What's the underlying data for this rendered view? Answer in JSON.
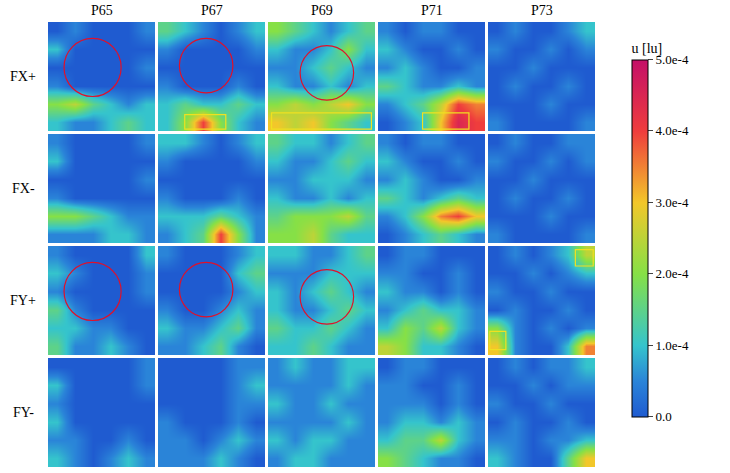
{
  "chart_data": {
    "type": "heatmap",
    "columns": [
      "P65",
      "P67",
      "P69",
      "P71",
      "P73"
    ],
    "rows": [
      "FX+",
      "FX-",
      "FY+",
      "FY-"
    ],
    "colorbar": {
      "title": "u [lu]",
      "range": [
        0,
        0.0005
      ],
      "ticks": [
        {
          "value": 0,
          "label": "0.0"
        },
        {
          "value": 0.0001,
          "label": "1.0e-4"
        },
        {
          "value": 0.0002,
          "label": "2.0e-4"
        },
        {
          "value": 0.0003,
          "label": "3.0e-4"
        },
        {
          "value": 0.0004,
          "label": "4.0e-4"
        },
        {
          "value": 0.0005,
          "label": "5.0e-4"
        }
      ]
    },
    "panels": [
      [
        [
          [
            0,
            5e-05,
            0,
            0,
            0,
            5e-05
          ],
          [
            0.0001,
            0,
            0,
            0,
            0,
            0
          ],
          [
            0,
            0,
            0,
            0,
            0,
            5e-05
          ],
          [
            5e-05,
            0,
            0,
            0,
            0,
            0
          ],
          [
            0.0002,
            0.00025,
            0.00015,
            0.0001,
            5e-05,
            0.0001
          ],
          [
            0.0001,
            5e-05,
            5e-05,
            0.0001,
            0.00015,
            0.0001
          ]
        ],
        [
          [
            0.00015,
            0.0001,
            5e-05,
            0,
            5e-05,
            0.0001
          ],
          [
            5e-05,
            0,
            0,
            0,
            0,
            5e-05
          ],
          [
            0,
            0,
            0,
            0,
            0,
            0
          ],
          [
            5e-05,
            0,
            0,
            0,
            5e-05,
            0
          ],
          [
            0.0001,
            0.00015,
            0.0001,
            0.0001,
            0.00015,
            0.0001
          ],
          [
            0.0001,
            0.0002,
            0.0004,
            0.0002,
            0.0001,
            5e-05
          ]
        ],
        [
          [
            0.0002,
            0.00015,
            0.0001,
            5e-05,
            0.0001,
            0.00015
          ],
          [
            0.0001,
            5e-05,
            5e-05,
            0.0001,
            0.0002,
            0.0001
          ],
          [
            5e-05,
            5e-05,
            0.0001,
            0.00015,
            0.0001,
            5e-05
          ],
          [
            0.0001,
            5e-05,
            5e-05,
            0.0001,
            5e-05,
            0.0001
          ],
          [
            0.0002,
            0.00025,
            0.0002,
            0.00025,
            0.0003,
            0.0002
          ],
          [
            0.0003,
            0.00025,
            0.0003,
            0.0002,
            0.00015,
            0.0001
          ]
        ],
        [
          [
            5e-05,
            0,
            5e-05,
            5e-05,
            0,
            0
          ],
          [
            0.0001,
            5e-05,
            0,
            0,
            5e-05,
            0
          ],
          [
            5e-05,
            0.0001,
            5e-05,
            0,
            0,
            5e-05
          ],
          [
            0.00015,
            0.0001,
            5e-05,
            5e-05,
            0.0001,
            5e-05
          ],
          [
            5e-05,
            0.0001,
            0.00015,
            0.00025,
            0.0004,
            0.00035
          ],
          [
            0,
            5e-05,
            0.0001,
            0.0003,
            0.00045,
            0.0004
          ]
        ],
        [
          [
            0,
            5e-05,
            0,
            0,
            5e-05,
            0.0001
          ],
          [
            5e-05,
            0,
            0,
            5e-05,
            0,
            5e-05
          ],
          [
            0,
            0,
            5e-05,
            0,
            0,
            0
          ],
          [
            0,
            5e-05,
            0,
            0,
            5e-05,
            0
          ],
          [
            0,
            0,
            0,
            5e-05,
            0,
            0
          ],
          [
            5e-05,
            0,
            0,
            0,
            0,
            5e-05
          ]
        ]
      ],
      [
        [
          [
            5e-05,
            0,
            0,
            0,
            0,
            5e-05
          ],
          [
            0.0001,
            0,
            0,
            0,
            0,
            0
          ],
          [
            0,
            0,
            0,
            0,
            0,
            5e-05
          ],
          [
            5e-05,
            0,
            0,
            0,
            0,
            0
          ],
          [
            0.0002,
            0.0002,
            0.00015,
            0.0001,
            5e-05,
            5e-05
          ],
          [
            5e-05,
            5e-05,
            5e-05,
            0.0001,
            0.0001,
            5e-05
          ]
        ],
        [
          [
            0.0001,
            0.0001,
            5e-05,
            0,
            5e-05,
            0.0001
          ],
          [
            5e-05,
            0,
            0,
            0,
            0,
            5e-05
          ],
          [
            0,
            0,
            0,
            0,
            0,
            0
          ],
          [
            5e-05,
            0,
            0,
            0,
            5e-05,
            0
          ],
          [
            0.0001,
            0.0001,
            0.0001,
            0.00015,
            0.0001,
            5e-05
          ],
          [
            5e-05,
            0.0001,
            0.00015,
            0.0004,
            0.0002,
            5e-05
          ]
        ],
        [
          [
            0.00015,
            0.0001,
            0.0001,
            5e-05,
            0.0001,
            0.00015
          ],
          [
            0.0001,
            5e-05,
            5e-05,
            0.0001,
            0.00015,
            0.0001
          ],
          [
            5e-05,
            5e-05,
            0.0001,
            0.0001,
            0.0001,
            5e-05
          ],
          [
            0.0001,
            5e-05,
            5e-05,
            0.0001,
            5e-05,
            0.0001
          ],
          [
            0.00015,
            0.0002,
            0.0002,
            0.0002,
            0.00025,
            0.00015
          ],
          [
            0.0002,
            0.0002,
            0.00025,
            0.00015,
            0.0001,
            0.0001
          ]
        ],
        [
          [
            5e-05,
            0,
            5e-05,
            5e-05,
            0,
            0
          ],
          [
            0.0001,
            5e-05,
            0,
            0,
            5e-05,
            0
          ],
          [
            5e-05,
            0.0001,
            5e-05,
            0,
            0,
            5e-05
          ],
          [
            0.00015,
            0.0001,
            5e-05,
            0.0001,
            0.00015,
            0.0001
          ],
          [
            5e-05,
            0.0001,
            0.0002,
            0.00035,
            0.0004,
            0.0003
          ],
          [
            0,
            5e-05,
            0.0001,
            0.00015,
            0.0001,
            5e-05
          ]
        ],
        [
          [
            0,
            5e-05,
            0,
            0,
            5e-05,
            5e-05
          ],
          [
            5e-05,
            0,
            0,
            5e-05,
            0,
            5e-05
          ],
          [
            0,
            0,
            5e-05,
            0,
            0,
            0
          ],
          [
            0,
            5e-05,
            0,
            0,
            5e-05,
            0
          ],
          [
            0,
            0,
            0,
            5e-05,
            0,
            0
          ],
          [
            5e-05,
            0,
            0,
            0,
            0,
            5e-05
          ]
        ]
      ],
      [
        [
          [
            5e-05,
            0,
            0,
            0,
            0,
            0.0001
          ],
          [
            0.0001,
            5e-05,
            0,
            0,
            0,
            5e-05
          ],
          [
            5e-05,
            0,
            0,
            0,
            0,
            5e-05
          ],
          [
            0.00015,
            5e-05,
            0,
            0,
            0,
            0
          ],
          [
            0.0001,
            0.0001,
            5e-05,
            5e-05,
            0,
            0
          ],
          [
            0.00015,
            5e-05,
            5e-05,
            0.0001,
            5e-05,
            0
          ]
        ],
        [
          [
            5e-05,
            0,
            0,
            0,
            5e-05,
            0.0001
          ],
          [
            0,
            0,
            0,
            0,
            0.0001,
            0.00015
          ],
          [
            0,
            0,
            0,
            0,
            5e-05,
            0.0001
          ],
          [
            5e-05,
            0,
            0,
            5e-05,
            0.0001,
            5e-05
          ],
          [
            0.0001,
            5e-05,
            5e-05,
            0.0001,
            0.00015,
            5e-05
          ],
          [
            5e-05,
            5e-05,
            0.0001,
            0.00015,
            5e-05,
            0
          ]
        ],
        [
          [
            0.0001,
            0.0001,
            5e-05,
            5e-05,
            0.0001,
            0.00015
          ],
          [
            5e-05,
            5e-05,
            5e-05,
            0.0001,
            0.0001,
            0.0001
          ],
          [
            0.0001,
            5e-05,
            0.0001,
            0.00015,
            0.0001,
            5e-05
          ],
          [
            0.0001,
            5e-05,
            5e-05,
            0.0001,
            0.00015,
            0.0001
          ],
          [
            0.00015,
            0.0001,
            0.0001,
            0.00015,
            0.0001,
            5e-05
          ],
          [
            0.0001,
            0.0001,
            0.00015,
            0.0001,
            5e-05,
            5e-05
          ]
        ],
        [
          [
            0,
            5e-05,
            5e-05,
            0,
            0,
            0
          ],
          [
            5e-05,
            5e-05,
            0,
            0,
            5e-05,
            0
          ],
          [
            0.0001,
            5e-05,
            5e-05,
            0,
            5e-05,
            0
          ],
          [
            5e-05,
            0.0001,
            0.00015,
            0.0001,
            0.0001,
            5e-05
          ],
          [
            0.0001,
            0.0002,
            0.00015,
            0.00025,
            0.0001,
            5e-05
          ],
          [
            0.00025,
            0.0002,
            0.0001,
            0.0001,
            5e-05,
            0
          ]
        ],
        [
          [
            0,
            5e-05,
            0,
            5e-05,
            0.0001,
            0.00025
          ],
          [
            0,
            0,
            5e-05,
            0,
            5e-05,
            0.0001
          ],
          [
            5e-05,
            0,
            0,
            5e-05,
            0,
            0
          ],
          [
            0,
            5e-05,
            0,
            0,
            5e-05,
            0
          ],
          [
            0.0002,
            5e-05,
            0,
            5e-05,
            0,
            5e-05
          ],
          [
            0.0003,
            5e-05,
            0,
            0,
            0.0001,
            0.00035
          ]
        ]
      ],
      [
        [
          [
            0,
            0,
            0,
            0,
            0,
            5e-05
          ],
          [
            0.0001,
            0,
            0,
            0,
            0,
            5e-05
          ],
          [
            5e-05,
            0,
            0,
            0,
            0,
            0
          ],
          [
            0.0001,
            0,
            0,
            0,
            0,
            0
          ],
          [
            5e-05,
            5e-05,
            0,
            0,
            5e-05,
            0
          ],
          [
            0.0001,
            5e-05,
            0,
            5e-05,
            0.0001,
            5e-05
          ]
        ],
        [
          [
            0,
            0,
            0,
            0,
            5e-05,
            5e-05
          ],
          [
            0,
            0,
            0,
            0,
            5e-05,
            0.0001
          ],
          [
            0,
            0,
            0,
            0,
            5e-05,
            5e-05
          ],
          [
            5e-05,
            0,
            0,
            0,
            5e-05,
            0
          ],
          [
            5e-05,
            5e-05,
            0,
            5e-05,
            0.0001,
            5e-05
          ],
          [
            5e-05,
            5e-05,
            5e-05,
            0.0001,
            5e-05,
            0
          ]
        ],
        [
          [
            5e-05,
            0.0001,
            5e-05,
            5e-05,
            0.0001,
            0.0001
          ],
          [
            5e-05,
            5e-05,
            5e-05,
            5e-05,
            0.0001,
            5e-05
          ],
          [
            0.0001,
            5e-05,
            5e-05,
            0.0001,
            5e-05,
            5e-05
          ],
          [
            5e-05,
            5e-05,
            5e-05,
            5e-05,
            0.0001,
            5e-05
          ],
          [
            0.0001,
            5e-05,
            0.0001,
            0.0001,
            5e-05,
            5e-05
          ],
          [
            5e-05,
            0.0001,
            0.0001,
            5e-05,
            5e-05,
            5e-05
          ]
        ],
        [
          [
            0,
            5e-05,
            5e-05,
            0,
            0,
            0
          ],
          [
            5e-05,
            5e-05,
            0,
            0,
            5e-05,
            0
          ],
          [
            5e-05,
            5e-05,
            5e-05,
            0,
            5e-05,
            0
          ],
          [
            5e-05,
            0.0001,
            0.0001,
            5e-05,
            0.0001,
            5e-05
          ],
          [
            0.0001,
            0.00015,
            0.00015,
            0.00025,
            0.0001,
            5e-05
          ],
          [
            0.0002,
            0.00015,
            0.0001,
            5e-05,
            5e-05,
            0
          ]
        ],
        [
          [
            0,
            5e-05,
            0,
            5e-05,
            5e-05,
            0.0001
          ],
          [
            0,
            0,
            5e-05,
            0,
            5e-05,
            5e-05
          ],
          [
            5e-05,
            0,
            0,
            5e-05,
            0,
            0
          ],
          [
            0,
            5e-05,
            0,
            0,
            5e-05,
            0
          ],
          [
            5e-05,
            5e-05,
            0,
            5e-05,
            5e-05,
            0.0001
          ],
          [
            0.0001,
            5e-05,
            0,
            0,
            0.00015,
            0.0003
          ]
        ]
      ]
    ]
  }
}
